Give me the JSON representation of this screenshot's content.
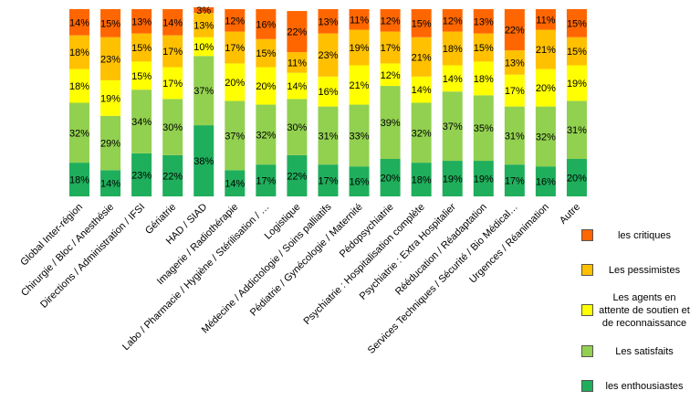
{
  "chart_data": {
    "type": "stacked-bar",
    "categories": [
      "Global Inter-région",
      "Chirurgie / Bloc / Anesthésie",
      "Directions / Administration / IFSI",
      "Gériatrie",
      "HAD / SIAD",
      "Imagerie / Radiothérapie",
      "Labo / Pharmacie / Hygiène / Stérilisation / …",
      "Logistique",
      "Médecine / Addictologie / Soins palliatifs",
      "Pédiatrie / Gynécologie / Maternité",
      "Pédopsychiatrie",
      "Psychiatrie : Hospitalisation complète",
      "Psychiatrie : Extra Hospitalier",
      "Rééducation / Réadaptation",
      "Services Techniques / Sécurité / Bio Médical…",
      "Urgences / Réanimation",
      "Autre"
    ],
    "ylim": [
      0,
      100
    ],
    "series": [
      {
        "name": "les enthousiastes",
        "color": "#1fae5b",
        "values": [
          18,
          14,
          23,
          22,
          38,
          14,
          17,
          22,
          17,
          16,
          20,
          18,
          19,
          19,
          17,
          16,
          20
        ],
        "value_labels": [
          "18%",
          "14%",
          "23%",
          "22%",
          "38%",
          "14%",
          "17%",
          "22%",
          "17%",
          "16%",
          "20%",
          "18%",
          "19%",
          "19%",
          "17%",
          "16%",
          "20%"
        ]
      },
      {
        "name": "Les satisfaits",
        "color": "#92d050",
        "values": [
          32,
          29,
          34,
          30,
          37,
          37,
          32,
          30,
          31,
          33,
          39,
          32,
          37,
          35,
          31,
          32,
          31
        ],
        "value_labels": [
          "32%",
          "29%",
          "34%",
          "30%",
          "37%",
          "37%",
          "32%",
          "30%",
          "31%",
          "33%",
          "39%",
          "32%",
          "37%",
          "35%",
          "31%",
          "32%",
          "31%"
        ]
      },
      {
        "name": "Les agents en attente de soutien et de reconnaissance",
        "color": "#ffff00",
        "values": [
          18,
          19,
          15,
          17,
          10,
          20,
          20,
          14,
          16,
          21,
          12,
          14,
          14,
          18,
          17,
          20,
          19
        ],
        "value_labels": [
          "18%",
          "19%",
          "15%",
          "17%",
          "10%",
          "20%",
          "20%",
          "14%",
          "16%",
          "21%",
          "12%",
          "14%",
          "14%",
          "18%",
          "17%",
          "20%",
          "19%"
        ]
      },
      {
        "name": "Les pessimistes",
        "color": "#ffc000",
        "values": [
          18,
          23,
          15,
          17,
          13,
          17,
          15,
          11,
          23,
          19,
          17,
          21,
          18,
          15,
          13,
          21,
          15
        ],
        "value_labels": [
          "18%",
          "23%",
          "15%",
          "17%",
          "13%",
          "17%",
          "15%",
          "11%",
          "23%",
          "19%",
          "17%",
          "21%",
          "18%",
          "15%",
          "13%",
          "21%",
          "15%"
        ]
      },
      {
        "name": "les critiques",
        "color": "#ff6600",
        "values": [
          14,
          15,
          13,
          14,
          3,
          12,
          16,
          22,
          13,
          11,
          12,
          15,
          12,
          13,
          22,
          11,
          15
        ],
        "value_labels": [
          "14%",
          "15%",
          "13%",
          "14%",
          "3%",
          "12%",
          "16%",
          "22%",
          "13%",
          "11%",
          "12%",
          "15%",
          "12%",
          "13%",
          "22%",
          "11%",
          "15%"
        ]
      }
    ]
  }
}
